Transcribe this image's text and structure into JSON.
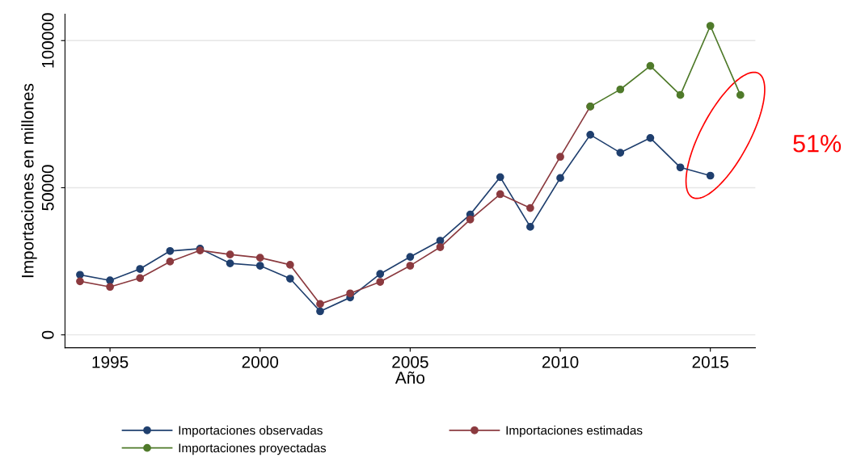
{
  "chart_data": {
    "type": "line",
    "xlabel": "Año",
    "ylabel": "Importaciones en millones",
    "xlim": [
      1993.5,
      2016.5
    ],
    "xticks": [
      1995,
      2000,
      2005,
      2010,
      2015
    ],
    "ylim": [
      -4400,
      109000
    ],
    "yticks": [
      0,
      50000,
      100000
    ],
    "grid": "y",
    "legend": "bottom",
    "marker": "circle",
    "line_style": "solid",
    "annotations": [
      "51%"
    ],
    "series": [
      {
        "name": "Importaciones observadas",
        "color": "#1f3f6e",
        "x": [
          1994,
          1995,
          1996,
          1997,
          1998,
          1999,
          2000,
          2001,
          2002,
          2003,
          2004,
          2005,
          2006,
          2007,
          2008,
          2009,
          2010,
          2011,
          2012,
          2013,
          2014,
          2015
        ],
        "values": [
          20400,
          18500,
          22400,
          28500,
          29300,
          24300,
          23500,
          19100,
          8000,
          12700,
          20700,
          26500,
          32000,
          40900,
          53600,
          36700,
          53300,
          68000,
          61900,
          66900,
          56900,
          54100
        ]
      },
      {
        "name": "Importaciones estimadas",
        "color": "#8b3a3f",
        "x": [
          1994,
          1995,
          1996,
          1997,
          1998,
          1999,
          2000,
          2001,
          2002,
          2003,
          2004,
          2005,
          2006,
          2007,
          2008,
          2009,
          2010,
          2011
        ],
        "values": [
          18200,
          16300,
          19300,
          24900,
          28700,
          27300,
          26200,
          23800,
          10500,
          14100,
          18000,
          23500,
          29800,
          39200,
          47800,
          43100,
          60500,
          77600
        ]
      },
      {
        "name": "Importaciones proyectadas",
        "color": "#4f7a2a",
        "x": [
          2011,
          2012,
          2013,
          2014,
          2015,
          2016
        ],
        "values": [
          77600,
          83400,
          91400,
          81500,
          105000,
          81500
        ]
      }
    ]
  }
}
